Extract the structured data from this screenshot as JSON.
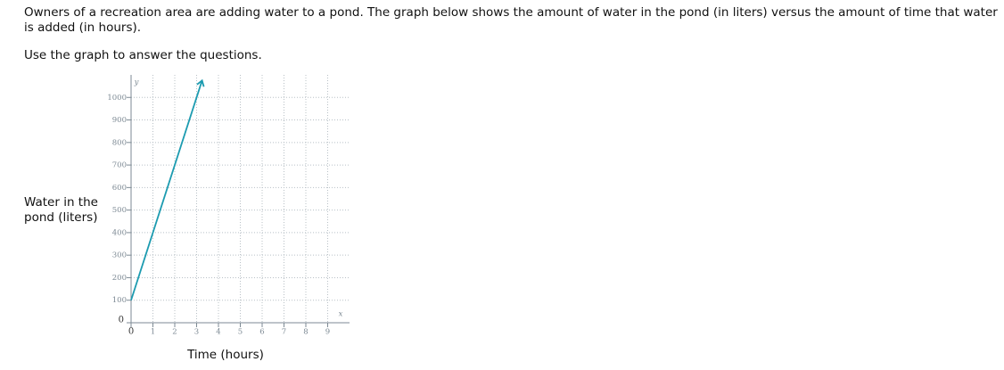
{
  "intro": "Owners of a recreation area are adding water to a pond. The graph below shows the amount of water in the pond (in liters) versus the amount of time that water is added (in hours).",
  "instruction": "Use the graph to answer the questions.",
  "chart_data": {
    "type": "line",
    "xlabel": "Time (hours)",
    "ylabel": "Water in the pond (liters)",
    "xaxis_symbol": "x",
    "yaxis_symbol": "y",
    "x": [
      0,
      3.25
    ],
    "series": [
      {
        "color": "#1c9bb0",
        "values": [
          100,
          1075
        ],
        "arrow_end": true
      }
    ],
    "xlim": [
      0,
      10
    ],
    "ylim": [
      0,
      1100
    ],
    "xticks": [
      0,
      1,
      2,
      3,
      4,
      5,
      6,
      7,
      8,
      9
    ],
    "yticks": [
      0,
      100,
      200,
      300,
      400,
      500,
      600,
      700,
      800,
      900,
      1000
    ],
    "grid": true
  }
}
